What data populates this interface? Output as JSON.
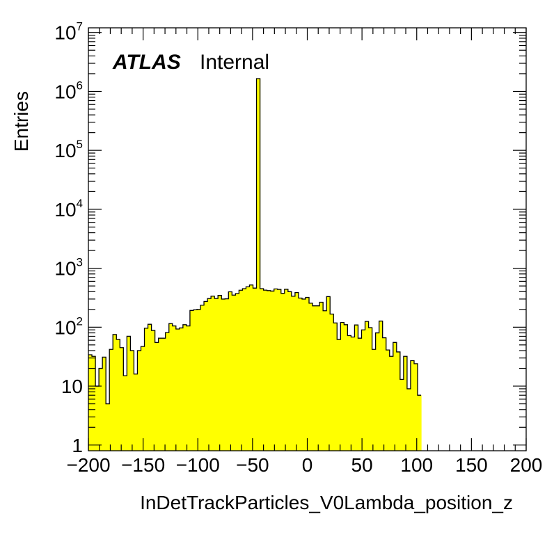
{
  "chart_data": {
    "type": "histogram",
    "xlabel": "InDetTrackParticles_V0Lambda_position_z",
    "ylabel": "Entries",
    "xlim": [
      -200,
      200
    ],
    "ylim": [
      0.8,
      12000000
    ],
    "y_scale": "log",
    "bin_width": 3.2,
    "fill_color": "#ffff00",
    "line_color": "#000000",
    "label_main": "ATLAS",
    "label_sub": "Internal",
    "x_ticks": [
      {
        "value": -200,
        "label": "−200"
      },
      {
        "value": -150,
        "label": "−150"
      },
      {
        "value": -100,
        "label": "−100"
      },
      {
        "value": -50,
        "label": "−50"
      },
      {
        "value": 0,
        "label": "0"
      },
      {
        "value": 50,
        "label": "50"
      },
      {
        "value": 100,
        "label": "100"
      },
      {
        "value": 150,
        "label": "150"
      },
      {
        "value": 200,
        "label": "200"
      }
    ],
    "y_ticks": [
      {
        "value": 1,
        "base": "1",
        "exp": ""
      },
      {
        "value": 10,
        "base": "10",
        "exp": ""
      },
      {
        "value": 100,
        "base": "10",
        "exp": "2"
      },
      {
        "value": 1000,
        "base": "10",
        "exp": "3"
      },
      {
        "value": 10000,
        "base": "10",
        "exp": "4"
      },
      {
        "value": 100000,
        "base": "10",
        "exp": "5"
      },
      {
        "value": 1000000,
        "base": "10",
        "exp": "6"
      },
      {
        "value": 10000000,
        "base": "10",
        "exp": "7"
      }
    ],
    "values": [
      34,
      32,
      10,
      20,
      31,
      5,
      42,
      75,
      62,
      45,
      15,
      70,
      40,
      16,
      40,
      47,
      96,
      112,
      88,
      55,
      65,
      65,
      81,
      115,
      105,
      93,
      97,
      110,
      105,
      192,
      197,
      200,
      236,
      273,
      306,
      336,
      307,
      346,
      300,
      303,
      398,
      350,
      372,
      423,
      450,
      485,
      520,
      460,
      1650000,
      450,
      425,
      417,
      410,
      445,
      437,
      375,
      440,
      400,
      335,
      386,
      312,
      300,
      320,
      255,
      230,
      230,
      265,
      190,
      330,
      167,
      118,
      62,
      120,
      110,
      72,
      68,
      109,
      65,
      90,
      125,
      98,
      42,
      80,
      127,
      66,
      41,
      32,
      55,
      38,
      13,
      32,
      9,
      27,
      24,
      7
    ]
  }
}
